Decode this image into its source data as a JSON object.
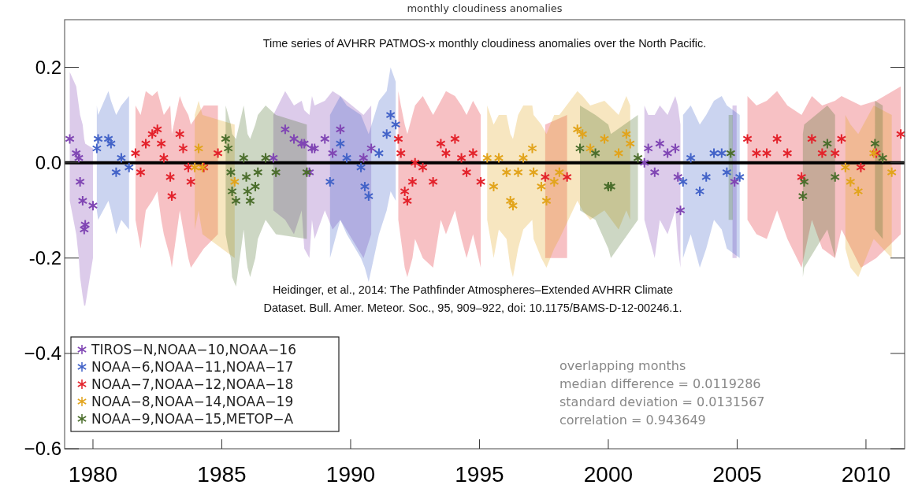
{
  "chart_data": {
    "type": "scatter",
    "title": "monthly cloudiness anomalies",
    "subtitle": "Time series of AVHRR PATMOS-x monthly cloudiness anomalies over the North Pacific.",
    "annotations": [
      "Heidinger, et al., 2014: The Pathfinder Atmospheres–Extended AVHRR Climate",
      "Dataset. Bull. Amer. Meteor. Soc., 95, 909–922, doi: 10.1175/BAMS-D-12-00246.1.",
      "overlapping months",
      "median difference = 0.0119286",
      "standard deviation = 0.0131567",
      "correlation = 0.943649"
    ],
    "xlim": [
      1978.9,
      2011.5
    ],
    "xticks": [
      1980,
      1985,
      1990,
      1995,
      2000,
      2005,
      2010
    ],
    "ylim": [
      -0.6,
      0.3
    ],
    "yticks": [
      {
        "value": 0.2,
        "label": "0.2"
      },
      {
        "value": 0,
        "label": "0.0"
      },
      {
        "value": -0.2,
        "label": "-0.2"
      },
      {
        "value": -0.4,
        "label": "−0.4"
      },
      {
        "value": -0.6,
        "label": "−0.6"
      }
    ],
    "ref_lines": [
      {
        "axis": "y",
        "value": 0,
        "color": "#000000"
      }
    ],
    "legend": "bottom left",
    "marker": "cross",
    "series": [
      {
        "name": "TIROS−N,NOAA−10,NOAA−16",
        "color": "#8046b4",
        "x": [
          1979.1,
          1979.35,
          1979.45,
          1979.5,
          1979.6,
          1979.66,
          1979.7,
          1980.0,
          1987.0,
          1987.46,
          1987.8,
          1988.1,
          1988.2,
          1988.4,
          1988.5,
          1988.6,
          1989.0,
          1989.3,
          1989.6,
          1990.5,
          1990.8,
          2001.4,
          2001.55,
          2001.8,
          2002.0,
          2002.3,
          2002.6,
          2002.7,
          2002.8,
          2004.9
        ],
        "values": [
          0.05,
          0.02,
          0.01,
          -0.04,
          -0.08,
          -0.14,
          -0.13,
          -0.09,
          0.01,
          0.07,
          0.05,
          0.04,
          0.04,
          -0.02,
          0.03,
          0.03,
          0.05,
          0.02,
          0.07,
          0.01,
          0.03,
          0,
          0.03,
          -0.02,
          0.04,
          0.02,
          0.03,
          -0.03,
          -0.1,
          -0.04
        ],
        "upper": [
          0.19,
          0.16,
          0.12,
          0.1,
          0.08,
          0.05,
          0.04,
          0.03,
          0.1,
          0.15,
          0.12,
          0.13,
          0.11,
          0.1,
          0.14,
          0.12,
          0.13,
          0.15,
          0.14,
          0.1,
          0.12,
          0.12,
          0.1,
          0.1,
          0.12,
          0.1,
          0.14,
          0.12,
          0.08,
          0.12
        ],
        "lower": [
          -0.08,
          -0.15,
          -0.2,
          -0.24,
          -0.28,
          -0.3,
          -0.3,
          -0.2,
          -0.1,
          -0.12,
          -0.15,
          -0.1,
          -0.18,
          -0.2,
          -0.12,
          -0.16,
          -0.1,
          -0.14,
          -0.12,
          -0.2,
          -0.15,
          -0.12,
          -0.15,
          -0.2,
          -0.12,
          -0.15,
          -0.1,
          -0.18,
          -0.22,
          -0.2
        ]
      },
      {
        "name": "NOAA−6,NOAA−11,NOAA−17",
        "color": "#4363c8",
        "x": [
          1980.15,
          1980.2,
          1980.6,
          1980.7,
          1980.9,
          1981.1,
          1981.4,
          1989.2,
          1989.6,
          1989.85,
          1990.4,
          1990.55,
          1990.7,
          1991.1,
          1991.4,
          1991.55,
          1991.75,
          2002.9,
          2003.2,
          2003.55,
          2003.8,
          2004.1,
          2004.4,
          2004.6,
          2005.1
        ],
        "values": [
          0.03,
          0.05,
          0.05,
          0.04,
          -0.02,
          0.01,
          -0.01,
          -0.04,
          0.04,
          0.01,
          -0.01,
          -0.05,
          -0.07,
          0.02,
          0.06,
          0.1,
          0.08,
          -0.04,
          0.01,
          -0.06,
          -0.03,
          0.02,
          0.02,
          -0.02,
          -0.03
        ],
        "upper": [
          0.12,
          0.1,
          0.15,
          0.13,
          0.1,
          0.12,
          0.14,
          0.1,
          0.14,
          0.12,
          0.1,
          0.08,
          0.06,
          0.13,
          0.15,
          0.2,
          0.17,
          0.1,
          0.12,
          0.08,
          0.1,
          0.13,
          0.14,
          0.12,
          0.1
        ],
        "lower": [
          -0.1,
          -0.12,
          -0.08,
          -0.1,
          -0.15,
          -0.12,
          -0.14,
          -0.2,
          -0.12,
          -0.15,
          -0.2,
          -0.22,
          -0.25,
          -0.15,
          -0.1,
          -0.06,
          -0.08,
          -0.2,
          -0.15,
          -0.22,
          -0.18,
          -0.12,
          -0.14,
          -0.18,
          -0.2
        ]
      },
      {
        "name": "NOAA−7,NOAA−12,NOAA−18",
        "color": "#e3222b",
        "x": [
          1981.65,
          1981.85,
          1982.05,
          1982.3,
          1982.5,
          1982.65,
          1982.75,
          1983.0,
          1983.06,
          1983.37,
          1983.5,
          1983.7,
          1983.8,
          1984.3,
          1984.85,
          1991.85,
          1991.95,
          1992.1,
          1992.2,
          1992.4,
          1992.5,
          1992.8,
          1993.2,
          1993.5,
          1993.7,
          1994.05,
          1994.3,
          1994.5,
          1994.75,
          1995.05,
          1997.55,
          1998.4,
          2005.4,
          2005.75,
          2006.15,
          2006.55,
          2006.95,
          2007.5,
          2007.9,
          2008.3,
          2008.8,
          2009.05,
          2009.8,
          2010.4,
          2011.35
        ],
        "values": [
          0.02,
          -0.02,
          0.04,
          0.06,
          0.07,
          0.04,
          0.01,
          -0.03,
          -0.07,
          0.06,
          0.03,
          -0.01,
          -0.04,
          -0.01,
          0.02,
          0.05,
          0.02,
          -0.06,
          -0.08,
          -0.04,
          0,
          -0.01,
          -0.04,
          0.04,
          0.02,
          0.05,
          0.01,
          -0.02,
          0.02,
          -0.04,
          -0.03,
          -0.03,
          0.05,
          0.02,
          0.02,
          0.05,
          0.02,
          -0.03,
          0.05,
          0.02,
          0.02,
          0.05,
          -0.01,
          0.02,
          0.06
        ],
        "upper": [
          0.12,
          0.1,
          0.15,
          0.14,
          0.15,
          0.12,
          0.1,
          0.12,
          0.06,
          0.14,
          0.12,
          0.1,
          0.08,
          0.12,
          0.12,
          0.15,
          0.12,
          0.08,
          0.06,
          0.1,
          0.12,
          0.14,
          0.1,
          0.13,
          0.15,
          0.14,
          0.12,
          0.1,
          0.13,
          0.1,
          0.08,
          0.1,
          0.14,
          0.12,
          0.13,
          0.15,
          0.12,
          0.1,
          0.14,
          0.12,
          0.13,
          0.14,
          0.12,
          0.13,
          0.16
        ],
        "lower": [
          -0.12,
          -0.18,
          -0.1,
          -0.08,
          -0.06,
          -0.12,
          -0.15,
          -0.2,
          -0.22,
          -0.1,
          -0.14,
          -0.2,
          -0.22,
          -0.18,
          -0.15,
          -0.12,
          -0.16,
          -0.22,
          -0.24,
          -0.2,
          -0.16,
          -0.2,
          -0.22,
          -0.12,
          -0.15,
          -0.1,
          -0.16,
          -0.2,
          -0.15,
          -0.22,
          -0.2,
          -0.2,
          -0.12,
          -0.15,
          -0.16,
          -0.1,
          -0.16,
          -0.22,
          -0.12,
          -0.18,
          -0.2,
          -0.14,
          -0.22,
          -0.2,
          -0.15
        ]
      },
      {
        "name": "NOAA−8,NOAA−14,NOAA−19",
        "color": "#e2a41c",
        "x": [
          1983.95,
          1984.1,
          1984.25,
          1985.5,
          1995.3,
          1995.55,
          1995.75,
          1996.05,
          1996.2,
          1996.3,
          1996.5,
          1996.7,
          1997.05,
          1997.1,
          1997.4,
          1997.6,
          1997.9,
          1998.1,
          1998.8,
          1999.0,
          1999.3,
          1999.85,
          2000.4,
          2000.7,
          2000.85,
          2009.2,
          2009.4,
          2009.7,
          2010.3,
          2011.0
        ],
        "values": [
          -0.01,
          0.03,
          -0.01,
          -0.04,
          0.01,
          -0.05,
          0.01,
          -0.02,
          -0.08,
          -0.09,
          -0.02,
          0.01,
          0.03,
          -0.02,
          -0.05,
          -0.08,
          -0.04,
          -0.02,
          0.07,
          0.06,
          0.03,
          0.05,
          0.02,
          0.06,
          0.04,
          -0.01,
          -0.04,
          -0.06,
          0.02,
          -0.02
        ],
        "upper": [
          0.1,
          0.13,
          0.1,
          0.08,
          0.12,
          0.08,
          0.1,
          0.1,
          0.06,
          0.05,
          0.1,
          0.12,
          0.12,
          0.1,
          0.08,
          0.06,
          0.1,
          0.1,
          0.15,
          0.14,
          0.12,
          0.13,
          0.1,
          0.14,
          0.12,
          0.1,
          0.08,
          0.06,
          0.12,
          0.1
        ],
        "lower": [
          -0.14,
          -0.1,
          -0.15,
          -0.2,
          -0.12,
          -0.2,
          -0.14,
          -0.16,
          -0.22,
          -0.24,
          -0.18,
          -0.14,
          -0.12,
          -0.16,
          -0.2,
          -0.22,
          -0.18,
          -0.16,
          -0.08,
          -0.1,
          -0.12,
          -0.1,
          -0.14,
          -0.1,
          -0.12,
          -0.18,
          -0.22,
          -0.24,
          -0.16,
          -0.2
        ]
      },
      {
        "name": "NOAA−9,NOAA−15,METOP−A",
        "color": "#4b6e2c",
        "x": [
          1985.15,
          1985.25,
          1985.35,
          1985.4,
          1985.55,
          1985.85,
          1985.95,
          1986.0,
          1986.1,
          1986.3,
          1986.4,
          1986.7,
          1987.1,
          1988.3,
          1998.9,
          1999.5,
          2000.0,
          2000.1,
          2001.15,
          2004.75,
          2007.55,
          2007.6,
          2008.5,
          2008.8,
          2010.35,
          2010.65
        ],
        "values": [
          0.05,
          0.03,
          -0.02,
          -0.06,
          -0.08,
          0.01,
          -0.03,
          -0.06,
          -0.08,
          -0.05,
          -0.02,
          0.01,
          -0.02,
          -0.02,
          0.03,
          0.02,
          -0.05,
          -0.05,
          0.01,
          0.02,
          -0.07,
          -0.04,
          0.04,
          -0.03,
          0.04,
          0.01
        ],
        "upper": [
          0.12,
          0.1,
          0.08,
          0.06,
          0.05,
          0.12,
          0.08,
          0.06,
          0.05,
          0.08,
          0.1,
          0.12,
          0.1,
          0.08,
          0.12,
          0.1,
          0.08,
          0.06,
          0.1,
          0.1,
          0.06,
          0.08,
          0.12,
          0.1,
          0.13,
          0.12
        ],
        "lower": [
          -0.15,
          -0.18,
          -0.2,
          -0.24,
          -0.26,
          -0.14,
          -0.2,
          -0.22,
          -0.24,
          -0.2,
          -0.16,
          -0.12,
          -0.15,
          -0.16,
          -0.1,
          -0.12,
          -0.18,
          -0.2,
          -0.12,
          -0.12,
          -0.24,
          -0.22,
          -0.14,
          -0.2,
          -0.14,
          -0.16
        ]
      }
    ]
  }
}
